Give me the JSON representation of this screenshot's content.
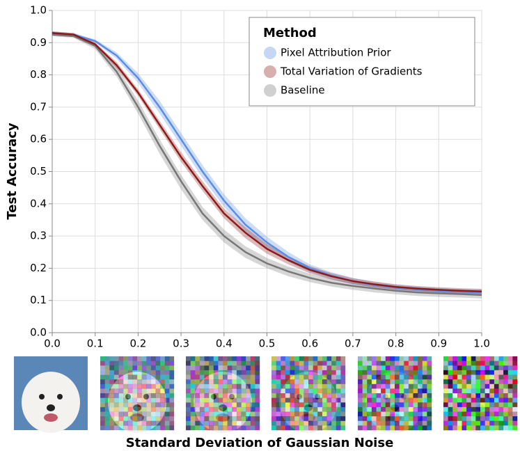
{
  "chart_data": {
    "type": "line",
    "xlabel": "Standard Deviation of Gaussian Noise",
    "ylabel": "Test Accuracy",
    "legend_title": "Method",
    "legend": "upper right",
    "grid": true,
    "x": [
      0,
      0.05,
      0.1,
      0.15,
      0.2,
      0.25,
      0.3,
      0.35,
      0.4,
      0.45,
      0.5,
      0.55,
      0.6,
      0.65,
      0.7,
      0.75,
      0.8,
      0.85,
      0.9,
      0.95,
      1
    ],
    "xlim": [
      0,
      1
    ],
    "xticks": [
      {
        "value": 0,
        "label": "0.0"
      },
      0.1,
      0.2,
      0.3,
      0.4,
      0.5,
      0.6,
      0.7,
      0.8,
      0.9,
      {
        "value": 1,
        "label": "1.0"
      }
    ],
    "ylim": [
      0,
      1
    ],
    "yticks": [
      {
        "value": 0,
        "label": "0.0"
      },
      0.1,
      0.2,
      0.3,
      0.4,
      0.5,
      0.6,
      0.7,
      0.8,
      0.9,
      {
        "value": 1,
        "label": "1.0"
      }
    ],
    "series": [
      {
        "name": "Baseline",
        "color": "#777777",
        "values": [
          0.925,
          0.92,
          0.89,
          0.81,
          0.7,
          0.58,
          0.47,
          0.37,
          0.3,
          0.25,
          0.215,
          0.19,
          0.17,
          0.155,
          0.145,
          0.137,
          0.13,
          0.125,
          0.122,
          0.12,
          0.117
        ],
        "lower": [
          0.92,
          0.915,
          0.88,
          0.795,
          0.68,
          0.555,
          0.445,
          0.35,
          0.28,
          0.232,
          0.2,
          0.175,
          0.157,
          0.143,
          0.133,
          0.125,
          0.119,
          0.114,
          0.111,
          0.109,
          0.106
        ],
        "upper": [
          0.93,
          0.925,
          0.9,
          0.825,
          0.72,
          0.6,
          0.49,
          0.39,
          0.32,
          0.268,
          0.232,
          0.205,
          0.183,
          0.167,
          0.157,
          0.149,
          0.141,
          0.136,
          0.133,
          0.131,
          0.128
        ]
      },
      {
        "name": "Pixel Attribution Prior",
        "color": "#5b8de6",
        "values": [
          0.93,
          0.925,
          0.905,
          0.86,
          0.79,
          0.7,
          0.6,
          0.5,
          0.41,
          0.335,
          0.28,
          0.235,
          0.2,
          0.177,
          0.16,
          0.148,
          0.14,
          0.134,
          0.13,
          0.127,
          0.125
        ],
        "lower": [
          0.925,
          0.92,
          0.9,
          0.85,
          0.775,
          0.68,
          0.58,
          0.48,
          0.39,
          0.315,
          0.262,
          0.22,
          0.188,
          0.166,
          0.15,
          0.139,
          0.131,
          0.125,
          0.121,
          0.118,
          0.116
        ],
        "upper": [
          0.935,
          0.93,
          0.91,
          0.87,
          0.805,
          0.72,
          0.62,
          0.52,
          0.43,
          0.355,
          0.298,
          0.25,
          0.212,
          0.188,
          0.17,
          0.157,
          0.149,
          0.143,
          0.139,
          0.136,
          0.134
        ]
      },
      {
        "name": "Total Variation of Gradients",
        "color": "#8b1a1a",
        "values": [
          0.93,
          0.925,
          0.895,
          0.83,
          0.745,
          0.645,
          0.545,
          0.455,
          0.37,
          0.31,
          0.26,
          0.225,
          0.195,
          0.175,
          0.16,
          0.15,
          0.142,
          0.137,
          0.133,
          0.13,
          0.128
        ],
        "lower": [
          0.925,
          0.92,
          0.89,
          0.82,
          0.735,
          0.632,
          0.53,
          0.44,
          0.355,
          0.293,
          0.245,
          0.212,
          0.184,
          0.165,
          0.151,
          0.141,
          0.134,
          0.129,
          0.125,
          0.122,
          0.12
        ],
        "upper": [
          0.935,
          0.93,
          0.9,
          0.84,
          0.755,
          0.658,
          0.56,
          0.47,
          0.385,
          0.327,
          0.275,
          0.238,
          0.206,
          0.185,
          0.169,
          0.159,
          0.15,
          0.145,
          0.141,
          0.138,
          0.136
        ]
      }
    ]
  }
}
